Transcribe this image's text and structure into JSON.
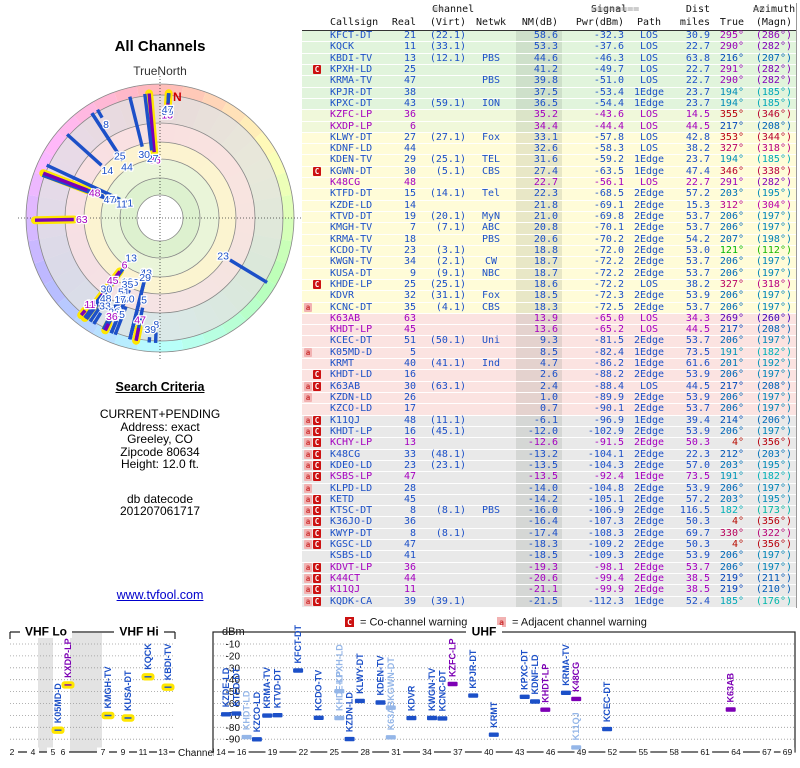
{
  "radar": {
    "title": "All Channels",
    "north_label": "TrueNorth",
    "n_label": "N"
  },
  "search": {
    "heading": "Search Criteria",
    "lines": [
      "CURRENT+PENDING",
      "Address: exact",
      "Greeley, CO",
      "Zipcode 80634",
      "Height: 12.0 ft."
    ],
    "db_label": "db datecode",
    "db_code": "201207061717"
  },
  "link": "www.tvfool.com",
  "table": {
    "channel_group": {
      "pre": "==",
      "word": "Channel",
      "post": "=="
    },
    "signal_group": {
      "pre": "========",
      "word": "Signal",
      "post": "========"
    },
    "dist_group": "Dist",
    "azimuth_group": {
      "pre": "==",
      "word": "Azimuth",
      "post": "=="
    },
    "col_headers": [
      "Callsign",
      "Real",
      "(Virt)",
      "Netwk",
      "NM(dB)",
      "Pwr(dBm)",
      "Path",
      "miles",
      "True",
      "(Magn)"
    ]
  },
  "legend": {
    "c_badge": "C",
    "c_text": "= Co-channel warning",
    "a_badge": "a",
    "a_text": "= Adjacent channel warning"
  },
  "band_chart": {
    "vhf_lo": "VHF Lo",
    "vhf_hi": "VHF Hi",
    "uhf": "UHF",
    "dbm_label": "dBm",
    "channel_label": "Channel",
    "dbm_ticks": [
      -10,
      -20,
      -30,
      -40,
      -50,
      -60,
      -70,
      -80,
      -90
    ],
    "vhf_ticks": [
      2,
      4,
      5,
      6,
      7,
      9,
      11,
      13
    ],
    "uhf_ticks": [
      14,
      16,
      19,
      22,
      25,
      28,
      31,
      34,
      37,
      40,
      43,
      46,
      49,
      52,
      55,
      58,
      61,
      64,
      67,
      69
    ]
  },
  "colors": {
    "digital": "#1c50c8",
    "digital_light": "#94b6e8",
    "analog": "#a500c0",
    "analog_bar": "#7d00b5",
    "halo": "#ffe600",
    "badge_c_bg": "#cc1111",
    "badge_a_bg": "#f2b2b2",
    "badge_a_fg": "#cc3333",
    "tier_g": "#e1f4dc",
    "tier_g2": "#f0f8da",
    "tier_y": "#fffcd8",
    "tier_p": "#fbe3e1",
    "tier_x": "#e9e9e9",
    "link": "#0000cc",
    "n_red": "#cc0000"
  },
  "chart_data": {
    "type": "table",
    "title": "All Channels",
    "note_row_format": [
      "callsign",
      "real_ch",
      "virt_ch",
      "network",
      "NM_dB",
      "Pwr_dBm",
      "path",
      "dist_miles",
      "azimuth_true_deg",
      "azimuth_magn_deg",
      "signal_type_D_digital_A_analog",
      "warnings_a_adjacent_C_cochannel"
    ],
    "rows": [
      [
        "KFCT-DT",
        "21",
        "(22.1)",
        "",
        58.6,
        -32.3,
        "LOS",
        30.9,
        295,
        286,
        "D",
        ""
      ],
      [
        "KQCK",
        "11",
        "(33.1)",
        "",
        53.3,
        -37.6,
        "LOS",
        22.7,
        290,
        282,
        "D",
        ""
      ],
      [
        "KBDI-TV",
        "13",
        "(12.1)",
        "PBS",
        44.6,
        -46.3,
        "LOS",
        63.8,
        216,
        207,
        "D",
        ""
      ],
      [
        "KPXH-LD",
        "25",
        "",
        "",
        41.2,
        -49.7,
        "LOS",
        22.7,
        291,
        282,
        "D",
        "C"
      ],
      [
        "KRMA-TV",
        "47",
        "",
        "PBS",
        39.8,
        -51.0,
        "LOS",
        22.7,
        290,
        282,
        "D",
        ""
      ],
      [
        "KPJR-DT",
        "38",
        "",
        "",
        37.5,
        -53.4,
        "1Edge",
        23.7,
        194,
        185,
        "D",
        ""
      ],
      [
        "KPXC-DT",
        "43",
        "(59.1)",
        "ION",
        36.5,
        -54.4,
        "1Edge",
        23.7,
        194,
        185,
        "D",
        ""
      ],
      [
        "KZFC-LP",
        "36",
        "",
        "",
        35.2,
        -43.6,
        "LOS",
        14.5,
        355,
        346,
        "A",
        ""
      ],
      [
        "KXDP-LP",
        "6",
        "",
        "",
        34.4,
        -44.4,
        "LOS",
        44.5,
        217,
        208,
        "A",
        ""
      ],
      [
        "KLWY-DT",
        "27",
        "(27.1)",
        "Fox",
        33.1,
        -57.8,
        "LOS",
        42.8,
        353,
        344,
        "D",
        ""
      ],
      [
        "KDNF-LD",
        "44",
        "",
        "",
        32.6,
        -58.3,
        "LOS",
        38.2,
        327,
        318,
        "D",
        ""
      ],
      [
        "KDEN-TV",
        "29",
        "(25.1)",
        "TEL",
        31.6,
        -59.2,
        "1Edge",
        23.7,
        194,
        185,
        "D",
        ""
      ],
      [
        "KGWN-DT",
        "30",
        "(5.1)",
        "CBS",
        27.4,
        -63.5,
        "1Edge",
        47.4,
        346,
        338,
        "D",
        "C"
      ],
      [
        "K48CG",
        "48",
        "",
        "",
        22.7,
        -56.1,
        "LOS",
        22.7,
        291,
        282,
        "A",
        ""
      ],
      [
        "KTFD-DT",
        "15",
        "(14.1)",
        "Tel",
        22.3,
        -68.5,
        "2Edge",
        57.2,
        203,
        195,
        "D",
        ""
      ],
      [
        "KZDE-LD",
        "14",
        "",
        "",
        21.8,
        -69.1,
        "2Edge",
        15.3,
        312,
        304,
        "D",
        ""
      ],
      [
        "KTVD-DT",
        "19",
        "(20.1)",
        "MyN",
        21.0,
        -69.8,
        "2Edge",
        53.7,
        206,
        197,
        "D",
        ""
      ],
      [
        "KMGH-TV",
        "7",
        "(7.1)",
        "ABC",
        20.8,
        -70.1,
        "2Edge",
        53.7,
        206,
        197,
        "D",
        ""
      ],
      [
        "KRMA-TV",
        "18",
        "",
        "PBS",
        20.6,
        -70.2,
        "2Edge",
        54.2,
        207,
        198,
        "D",
        ""
      ],
      [
        "KCDO-TV",
        "23",
        "(3.1)",
        "",
        18.8,
        -72.0,
        "2Edge",
        53.0,
        121,
        112,
        "D",
        ""
      ],
      [
        "KWGN-TV",
        "34",
        "(2.1)",
        "CW",
        18.7,
        -72.2,
        "2Edge",
        53.7,
        206,
        197,
        "D",
        ""
      ],
      [
        "KUSA-DT",
        "9",
        "(9.1)",
        "NBC",
        18.7,
        -72.2,
        "2Edge",
        53.7,
        206,
        197,
        "D",
        ""
      ],
      [
        "KHDE-LP",
        "25",
        "(25.1)",
        "",
        18.6,
        -72.2,
        "LOS",
        38.2,
        327,
        318,
        "D",
        "C"
      ],
      [
        "KDVR",
        "32",
        "(31.1)",
        "Fox",
        18.5,
        -72.3,
        "2Edge",
        53.9,
        206,
        197,
        "D",
        ""
      ],
      [
        "KCNC-DT",
        "35",
        "(4.1)",
        "CBS",
        18.3,
        -72.5,
        "2Edge",
        53.7,
        206,
        197,
        "D",
        "a"
      ],
      [
        "K63AB",
        "63",
        "",
        "",
        13.9,
        -65.0,
        "LOS",
        34.3,
        269,
        260,
        "A",
        ""
      ],
      [
        "KHDT-LP",
        "45",
        "",
        "",
        13.6,
        -65.2,
        "LOS",
        44.5,
        217,
        208,
        "A",
        ""
      ],
      [
        "KCEC-DT",
        "51",
        "(50.1)",
        "Uni",
        9.3,
        -81.5,
        "2Edge",
        53.7,
        206,
        197,
        "D",
        ""
      ],
      [
        "K05MD-D",
        "5",
        "",
        "",
        8.5,
        -82.4,
        "1Edge",
        73.5,
        191,
        182,
        "D",
        "a"
      ],
      [
        "KRMT",
        "40",
        "(41.1)",
        "Ind",
        4.7,
        -86.2,
        "1Edge",
        61.6,
        201,
        192,
        "D",
        ""
      ],
      [
        "KHDT-LD",
        "16",
        "",
        "",
        2.6,
        -88.2,
        "2Edge",
        53.9,
        206,
        197,
        "D",
        "C"
      ],
      [
        "K63AB",
        "30",
        "(63.1)",
        "",
        2.4,
        -88.4,
        "LOS",
        44.5,
        217,
        208,
        "D",
        "aC"
      ],
      [
        "KZDN-LD",
        "26",
        "",
        "",
        1.0,
        -89.9,
        "2Edge",
        53.9,
        206,
        197,
        "D",
        "a"
      ],
      [
        "KZCO-LD",
        "17",
        "",
        "",
        0.7,
        -90.1,
        "2Edge",
        53.7,
        206,
        197,
        "D",
        ""
      ],
      [
        "K11QJ",
        "48",
        "(11.1)",
        "",
        -6.1,
        -96.9,
        "1Edge",
        39.4,
        214,
        206,
        "D",
        "aC"
      ],
      [
        "KHDT-LP",
        "16",
        "(45.1)",
        "",
        -12.0,
        -102.9,
        "2Edge",
        53.9,
        206,
        197,
        "D",
        "aC"
      ],
      [
        "KCHY-LP",
        "13",
        "",
        "",
        -12.6,
        -91.5,
        "2Edge",
        50.3,
        4,
        356,
        "A",
        "aC"
      ],
      [
        "K48CG",
        "33",
        "(48.1)",
        "",
        -13.2,
        -104.1,
        "2Edge",
        22.3,
        212,
        203,
        "D",
        "aC"
      ],
      [
        "KDEO-LD",
        "23",
        "(23.1)",
        "",
        -13.5,
        -104.3,
        "2Edge",
        57.0,
        203,
        195,
        "D",
        "aC"
      ],
      [
        "KSBS-LP",
        "47",
        "",
        "",
        -13.5,
        -92.4,
        "1Edge",
        73.5,
        191,
        182,
        "A",
        "aC"
      ],
      [
        "KLPD-LD",
        "28",
        "",
        "",
        -14.0,
        -104.8,
        "2Edge",
        53.9,
        206,
        197,
        "D",
        "a"
      ],
      [
        "KETD",
        "45",
        "",
        "",
        -14.2,
        -105.1,
        "2Edge",
        57.2,
        203,
        195,
        "D",
        "aC"
      ],
      [
        "KTSC-DT",
        "8",
        "(8.1)",
        "PBS",
        -16.0,
        -106.9,
        "2Edge",
        116.5,
        182,
        173,
        "D",
        "aC"
      ],
      [
        "K36JO-D",
        "36",
        "",
        "",
        -16.4,
        -107.3,
        "2Edge",
        50.3,
        4,
        356,
        "D",
        "aC"
      ],
      [
        "KWYP-DT",
        "8",
        "(8.1)",
        "",
        -17.4,
        -108.3,
        "2Edge",
        69.7,
        330,
        322,
        "D",
        "aC"
      ],
      [
        "KGSC-LD",
        "47",
        "",
        "",
        -18.3,
        -109.2,
        "2Edge",
        50.3,
        4,
        356,
        "D",
        "aC"
      ],
      [
        "KSBS-LD",
        "41",
        "",
        "",
        -18.5,
        -109.3,
        "2Edge",
        53.9,
        206,
        197,
        "D",
        ""
      ],
      [
        "KDVT-LP",
        "36",
        "",
        "",
        -19.3,
        -98.1,
        "2Edge",
        53.7,
        206,
        197,
        "A",
        "aC"
      ],
      [
        "K44CT",
        "44",
        "",
        "",
        -20.6,
        -99.4,
        "2Edge",
        38.5,
        219,
        211,
        "A",
        "aC"
      ],
      [
        "K11QJ",
        "11",
        "",
        "",
        -21.1,
        -99.9,
        "2Edge",
        38.5,
        219,
        210,
        "A",
        "aC"
      ],
      [
        "KQDK-CA",
        "39",
        "(39.1)",
        "",
        -21.5,
        -112.3,
        "1Edge",
        52.4,
        185,
        176,
        "D",
        "aC"
      ]
    ]
  }
}
